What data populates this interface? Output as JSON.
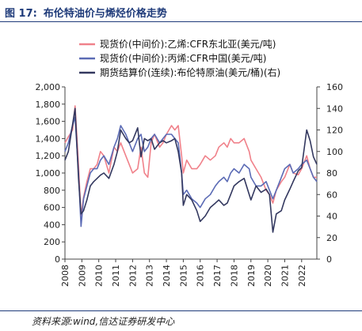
{
  "figure": {
    "number": "图 17:",
    "title": "布伦特油价与烯烃价格走势",
    "source": "资料来源:wind,信达证券研发中心"
  },
  "chart_data": {
    "type": "line",
    "ylim_left": [
      0,
      2000
    ],
    "ylim_right": [
      0,
      160
    ],
    "left_ticks": [
      "0",
      "200",
      "400",
      "600",
      "800",
      "1,000",
      "1,200",
      "1,400",
      "1,600",
      "1,800",
      "2,000"
    ],
    "right_ticks": [
      "0",
      "20",
      "40",
      "60",
      "80",
      "100",
      "120",
      "140",
      "160"
    ],
    "x_ticks": [
      "2008",
      "2009",
      "2010",
      "2011",
      "2012",
      "2013",
      "2014",
      "2015",
      "2016",
      "2017",
      "2018",
      "2019",
      "2020",
      "2021",
      "2022"
    ],
    "xlim": [
      2008.0,
      2022.9
    ],
    "legend_position": "top-right",
    "series": [
      {
        "name": "现货价(中间价):乙烯:CFR东北亚(美元/吨)",
        "axis": "left",
        "color": "#f0818a",
        "x": [
          2008.0,
          2008.2,
          2008.45,
          2008.6,
          2008.8,
          2008.95,
          2009.1,
          2009.3,
          2009.5,
          2009.7,
          2009.9,
          2010.1,
          2010.3,
          2010.6,
          2010.9,
          2011.1,
          2011.3,
          2011.6,
          2011.8,
          2012.0,
          2012.3,
          2012.5,
          2012.7,
          2012.9,
          2013.1,
          2013.3,
          2013.6,
          2013.8,
          2014.0,
          2014.3,
          2014.5,
          2014.7,
          2014.9,
          2015.0,
          2015.2,
          2015.5,
          2015.8,
          2016.0,
          2016.3,
          2016.6,
          2016.9,
          2017.1,
          2017.4,
          2017.6,
          2017.8,
          2018.0,
          2018.3,
          2018.6,
          2018.9,
          2019.0,
          2019.3,
          2019.6,
          2019.9,
          2020.1,
          2020.3,
          2020.5,
          2020.8,
          2021.0,
          2021.3,
          2021.5,
          2021.8,
          2022.0,
          2022.3,
          2022.5,
          2022.7,
          2022.9
        ],
        "y": [
          1350,
          1420,
          1500,
          1780,
          1100,
          500,
          720,
          900,
          1050,
          1050,
          1100,
          1250,
          1200,
          1000,
          1300,
          1250,
          1350,
          1200,
          1100,
          1000,
          1050,
          1300,
          1000,
          950,
          1350,
          1450,
          1300,
          1350,
          1450,
          1550,
          1500,
          1550,
          1200,
          1000,
          1150,
          1050,
          1050,
          1100,
          1200,
          1150,
          1200,
          1300,
          1350,
          1300,
          1400,
          1350,
          1350,
          1400,
          1250,
          1150,
          1050,
          950,
          800,
          750,
          650,
          800,
          900,
          950,
          1100,
          1000,
          980,
          1050,
          1200,
          1050,
          950,
          950
        ]
      },
      {
        "name": "现货价(中间价):丙烯:CFR中国(美元/吨)",
        "axis": "left",
        "color": "#5b6bb5",
        "x": [
          2008.0,
          2008.2,
          2008.45,
          2008.6,
          2008.8,
          2008.95,
          2009.1,
          2009.3,
          2009.5,
          2009.7,
          2009.9,
          2010.1,
          2010.3,
          2010.6,
          2010.9,
          2011.1,
          2011.3,
          2011.6,
          2011.8,
          2012.0,
          2012.3,
          2012.5,
          2012.7,
          2012.9,
          2013.1,
          2013.3,
          2013.6,
          2013.8,
          2014.0,
          2014.3,
          2014.5,
          2014.7,
          2014.9,
          2015.0,
          2015.2,
          2015.5,
          2015.8,
          2016.0,
          2016.3,
          2016.6,
          2016.9,
          2017.1,
          2017.4,
          2017.6,
          2017.8,
          2018.0,
          2018.3,
          2018.6,
          2018.9,
          2019.0,
          2019.3,
          2019.6,
          2019.9,
          2020.1,
          2020.3,
          2020.5,
          2020.8,
          2021.0,
          2021.3,
          2021.5,
          2021.8,
          2022.0,
          2022.3,
          2022.5,
          2022.7,
          2022.9
        ],
        "y": [
          1250,
          1350,
          1550,
          1650,
          1000,
          380,
          700,
          850,
          1000,
          1050,
          1050,
          1150,
          1200,
          1100,
          1300,
          1400,
          1550,
          1450,
          1350,
          1250,
          1400,
          1450,
          1250,
          1300,
          1400,
          1450,
          1350,
          1400,
          1450,
          1450,
          1400,
          1350,
          1000,
          750,
          800,
          700,
          650,
          600,
          700,
          750,
          850,
          900,
          950,
          900,
          1000,
          1050,
          1000,
          1100,
          1050,
          950,
          850,
          850,
          900,
          800,
          700,
          800,
          950,
          1050,
          1100,
          1000,
          1050,
          1100,
          1150,
          1050,
          950,
          900
        ]
      },
      {
        "name": "期货结算价(连续):布伦特原油(美元/桶)(右)",
        "axis": "right",
        "color": "#33385f",
        "x": [
          2008.0,
          2008.2,
          2008.45,
          2008.6,
          2008.8,
          2008.95,
          2009.1,
          2009.3,
          2009.5,
          2009.7,
          2009.9,
          2010.1,
          2010.3,
          2010.6,
          2010.9,
          2011.1,
          2011.3,
          2011.6,
          2011.8,
          2012.0,
          2012.3,
          2012.5,
          2012.7,
          2012.9,
          2013.1,
          2013.3,
          2013.6,
          2013.8,
          2014.0,
          2014.3,
          2014.5,
          2014.7,
          2014.9,
          2015.0,
          2015.2,
          2015.5,
          2015.8,
          2016.0,
          2016.3,
          2016.6,
          2016.9,
          2017.1,
          2017.4,
          2017.6,
          2017.8,
          2018.0,
          2018.3,
          2018.6,
          2018.9,
          2019.0,
          2019.3,
          2019.6,
          2019.9,
          2020.1,
          2020.3,
          2020.5,
          2020.8,
          2021.0,
          2021.3,
          2021.5,
          2021.8,
          2022.0,
          2022.3,
          2022.5,
          2022.7,
          2022.9
        ],
        "y": [
          92,
          100,
          125,
          140,
          75,
          42,
          45,
          55,
          68,
          72,
          75,
          78,
          80,
          75,
          88,
          100,
          120,
          112,
          108,
          110,
          122,
          95,
          112,
          110,
          112,
          102,
          108,
          110,
          108,
          110,
          112,
          100,
          80,
          50,
          60,
          55,
          45,
          35,
          40,
          48,
          52,
          55,
          50,
          52,
          60,
          68,
          72,
          75,
          60,
          55,
          68,
          62,
          65,
          60,
          25,
          42,
          45,
          55,
          65,
          72,
          82,
          85,
          120,
          110,
          95,
          88
        ]
      }
    ]
  }
}
